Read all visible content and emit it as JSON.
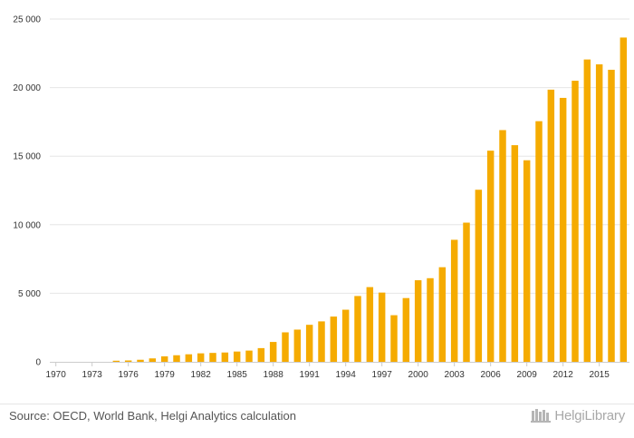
{
  "chart_data": {
    "type": "bar",
    "title": "",
    "xlabel": "",
    "ylabel": "",
    "ylim": [
      0,
      25000
    ],
    "grid": true,
    "legend": "none",
    "bar_color": "#f5ab00",
    "y_ticks": [
      0,
      5000,
      10000,
      15000,
      20000,
      25000
    ],
    "y_tick_labels": [
      "0",
      "5 000",
      "10 000",
      "15 000",
      "20 000",
      "25 000"
    ],
    "x_tick_labels": [
      "1970",
      "1973",
      "1976",
      "1979",
      "1982",
      "1985",
      "1988",
      "1991",
      "1994",
      "1997",
      "2000",
      "2003",
      "2006",
      "2009",
      "2012",
      "2015"
    ],
    "categories": [
      1970,
      1971,
      1972,
      1973,
      1974,
      1975,
      1976,
      1977,
      1978,
      1979,
      1980,
      1981,
      1982,
      1983,
      1984,
      1985,
      1986,
      1987,
      1988,
      1989,
      1990,
      1991,
      1992,
      1993,
      1994,
      1995,
      1996,
      1997,
      1998,
      1999,
      2000,
      2001,
      2002,
      2003,
      2004,
      2005,
      2006,
      2007,
      2008,
      2009,
      2010,
      2011,
      2012,
      2013,
      2014,
      2015,
      2016,
      2017
    ],
    "values": [
      0,
      0,
      0,
      0,
      0,
      80,
      100,
      150,
      250,
      400,
      480,
      550,
      620,
      650,
      680,
      750,
      820,
      1000,
      1450,
      2150,
      2350,
      2700,
      2950,
      3300,
      3800,
      4800,
      5450,
      5050,
      3400,
      4650,
      5950,
      6100,
      6900,
      8900,
      10150,
      12550,
      15400,
      16900,
      15800,
      14700,
      17550,
      19850,
      19250,
      20500,
      22050,
      21700,
      21300,
      23650
    ]
  },
  "footer": {
    "source": "Source: OECD, World Bank, Helgi Analytics calculation",
    "brand": "HelgiLibrary"
  }
}
